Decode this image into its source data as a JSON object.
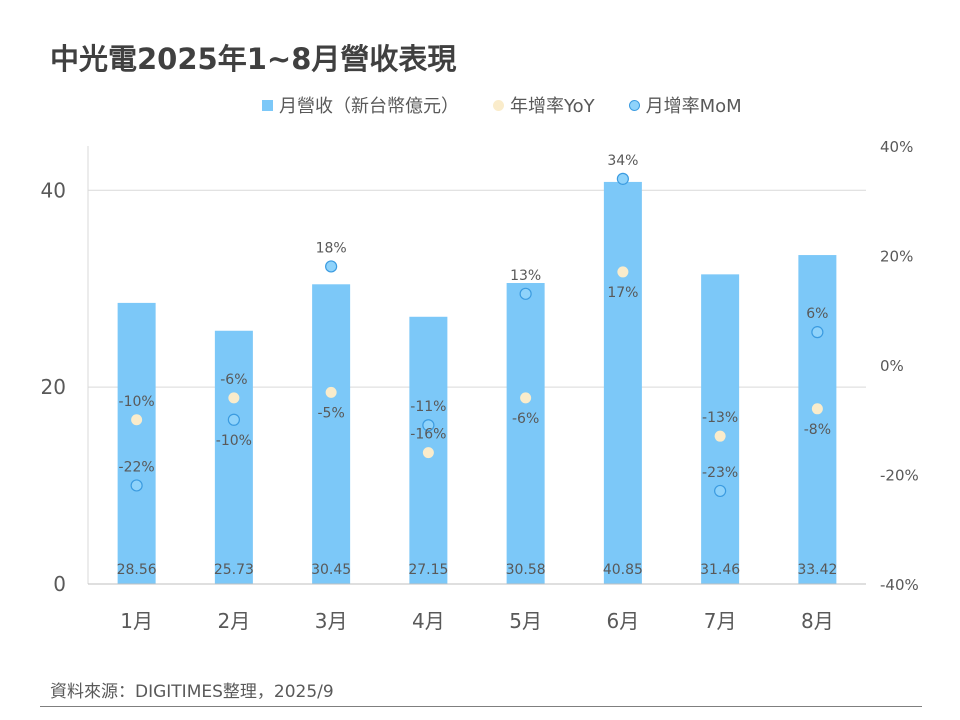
{
  "title": "中光電2025年1~8月營收表現",
  "legend": {
    "revenue": "月營收（新台幣億元）",
    "yoy": "年增率YoY",
    "mom": "月增率MoM"
  },
  "source": "資料來源：DIGITIMES整理，2025/9",
  "chart_data": {
    "type": "bar",
    "categories": [
      "1月",
      "2月",
      "3月",
      "4月",
      "5月",
      "6月",
      "7月",
      "8月"
    ],
    "series": [
      {
        "name": "月營收（新台幣億元）",
        "type": "bar",
        "axis": "left",
        "color": "#7cc8f8",
        "values": [
          28.56,
          25.73,
          30.45,
          27.15,
          30.58,
          40.85,
          31.46,
          33.42
        ],
        "labels": [
          "28.56",
          "25.73",
          "30.45",
          "27.15",
          "30.58",
          "40.85",
          "31.46",
          "33.42"
        ]
      },
      {
        "name": "年增率YoY",
        "type": "scatter",
        "axis": "right",
        "color": "#faeccb",
        "values": [
          -10,
          -6,
          -5,
          -16,
          -6,
          17,
          -13,
          -8
        ],
        "labels": [
          "-10%",
          "-6%",
          "-5%",
          "-16%",
          "-6%",
          "17%",
          "-13%",
          "-8%"
        ]
      },
      {
        "name": "月增率MoM",
        "type": "scatter",
        "axis": "right",
        "color": "#8fd3fb",
        "values": [
          -22,
          -10,
          18,
          -11,
          13,
          34,
          -23,
          6
        ],
        "labels": [
          "-22%",
          "-10%",
          "18%",
          "-11%",
          "13%",
          "34%",
          "-23%",
          "6%"
        ]
      }
    ],
    "y_left": {
      "ticks": [
        "0",
        "20",
        "40"
      ],
      "ylim": [
        0,
        44.5
      ]
    },
    "y_right": {
      "ticks": [
        "40%",
        "20%",
        "0%",
        "-20%",
        "-40%"
      ],
      "ylim": [
        -40,
        40
      ]
    },
    "grid": true,
    "legend_position": "top"
  }
}
